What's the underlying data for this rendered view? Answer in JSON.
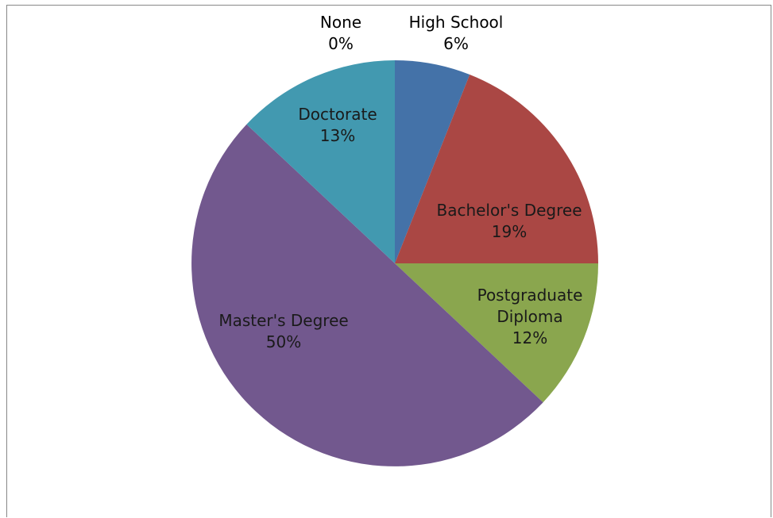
{
  "chart_data": {
    "type": "pie",
    "slices": [
      {
        "label": "High School",
        "value": 6,
        "value_label": "6%",
        "color": "#4472a8",
        "label_color": "#000000"
      },
      {
        "label": "Bachelor's Degree",
        "value": 19,
        "value_label": "19%",
        "color": "#aa4744",
        "label_color": "#1a1a1a"
      },
      {
        "label": "Postgraduate Diploma",
        "label_lines": [
          "Postgraduate",
          "Diploma"
        ],
        "value": 12,
        "value_label": "12%",
        "color": "#8aa64e",
        "label_color": "#1a1a1a"
      },
      {
        "label": "Master's Degree",
        "value": 50,
        "value_label": "50%",
        "color": "#72588e",
        "label_color": "#1a1a1a"
      },
      {
        "label": "Doctorate",
        "value": 13,
        "value_label": "13%",
        "color": "#4299b0",
        "label_color": "#1a1a1a"
      },
      {
        "label": "None",
        "value": 0,
        "value_label": "0%",
        "color": "#d9a441",
        "label_color": "#000000"
      }
    ],
    "start_angle": "12 o'clock",
    "direction": "clockwise",
    "legend": "none"
  }
}
